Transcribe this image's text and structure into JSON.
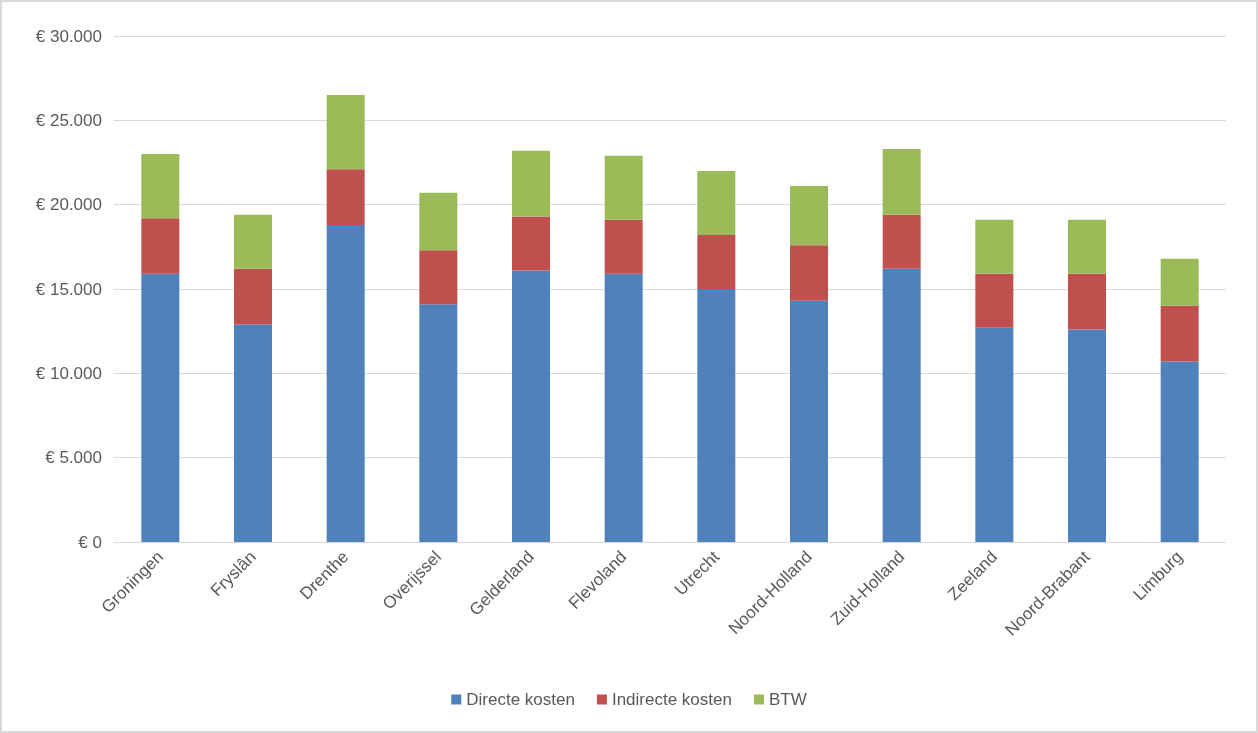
{
  "chart_data": {
    "type": "bar",
    "stacked": true,
    "categories": [
      "Groningen",
      "Fryslân",
      "Drenthe",
      "Overijssel",
      "Gelderland",
      "Flevoland",
      "Utrecht",
      "Noord-Holland",
      "Zuid-Holland",
      "Zeeland",
      "Noord-Brabant",
      "Limburg"
    ],
    "series": [
      {
        "name": "Directe kosten",
        "color": "#4f81bd",
        "values": [
          15900,
          12900,
          18800,
          14100,
          16100,
          15900,
          15000,
          14300,
          16200,
          12700,
          12600,
          10700
        ]
      },
      {
        "name": "Indirecte kosten",
        "color": "#c0504d",
        "values": [
          3300,
          3300,
          3300,
          3200,
          3200,
          3200,
          3200,
          3300,
          3200,
          3200,
          3300,
          3300
        ]
      },
      {
        "name": "BTW",
        "color": "#9bbb59",
        "values": [
          3800,
          3200,
          4400,
          3400,
          3900,
          3800,
          3800,
          3500,
          3900,
          3200,
          3200,
          2800
        ]
      }
    ],
    "ylim": [
      0,
      30000
    ],
    "yticks": [
      {
        "value": 0,
        "label": "€ 0"
      },
      {
        "value": 5000,
        "label": "€ 5.000"
      },
      {
        "value": 10000,
        "label": "€ 10.000"
      },
      {
        "value": 15000,
        "label": "€ 15.000"
      },
      {
        "value": 20000,
        "label": "€ 20.000"
      },
      {
        "value": 25000,
        "label": "€ 25.000"
      },
      {
        "value": 30000,
        "label": "€ 30.000"
      }
    ],
    "grid": "y",
    "legend": "bottom"
  }
}
